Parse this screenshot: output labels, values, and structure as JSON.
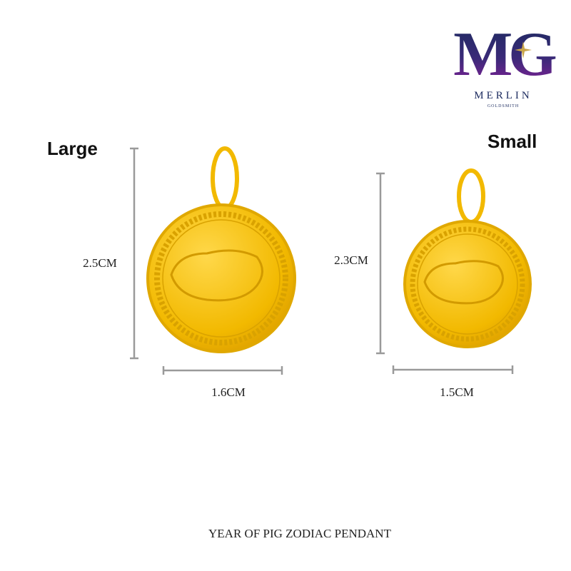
{
  "logo": {
    "monogram": "MG",
    "brand": "MERLIN",
    "tagline": "GOLDSMITH"
  },
  "pendants": [
    {
      "label": "Large",
      "height": "2.5CM",
      "width": "1.6CM"
    },
    {
      "label": "Small",
      "height": "2.3CM",
      "width": "1.5CM"
    }
  ],
  "caption": "YEAR OF PIG ZODIAC PENDANT"
}
